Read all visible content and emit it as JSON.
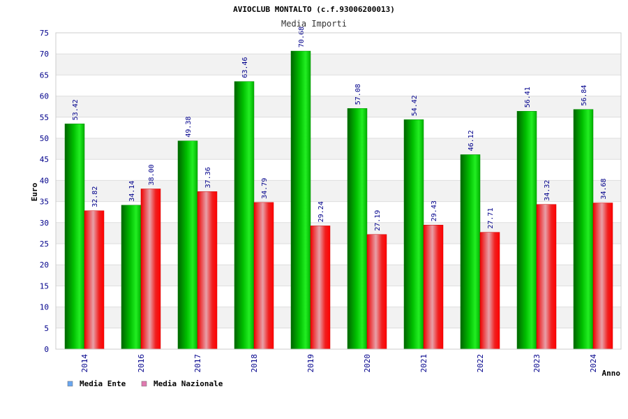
{
  "chart_data": {
    "type": "bar",
    "title": "AVIOCLUB MONTALTO (c.f.93006200013)",
    "subtitle": "Media Importi",
    "xlabel": "Anno",
    "ylabel": "Euro",
    "ylim": [
      0,
      75
    ],
    "yticks": [
      0,
      5,
      10,
      15,
      20,
      25,
      30,
      35,
      40,
      45,
      50,
      55,
      60,
      65,
      70,
      75
    ],
    "categories": [
      "2014",
      "2016",
      "2017",
      "2018",
      "2019",
      "2020",
      "2021",
      "2022",
      "2023",
      "2024"
    ],
    "series": [
      {
        "name": "Media Ente",
        "color": "#00c000",
        "legend_color": "#6aa7f0",
        "values": [
          53.42,
          34.14,
          49.38,
          63.46,
          70.68,
          57.08,
          54.42,
          46.12,
          56.41,
          56.84
        ],
        "labels": [
          "53.42",
          "34.14",
          "49.38",
          "63.46",
          "70.68",
          "57.08",
          "54.42",
          "46.12",
          "56.41",
          "56.84"
        ]
      },
      {
        "name": "Media Nazionale",
        "color": "#ee0000",
        "legend_color": "#e07ab0",
        "values": [
          32.82,
          38.0,
          37.36,
          34.79,
          29.24,
          27.19,
          29.43,
          27.71,
          34.32,
          34.68
        ],
        "labels": [
          "32.82",
          "38.00",
          "37.36",
          "34.79",
          "29.24",
          "27.19",
          "29.43",
          "27.71",
          "34.32",
          "34.68"
        ]
      }
    ],
    "grid": true,
    "legend": "bottom-left"
  }
}
